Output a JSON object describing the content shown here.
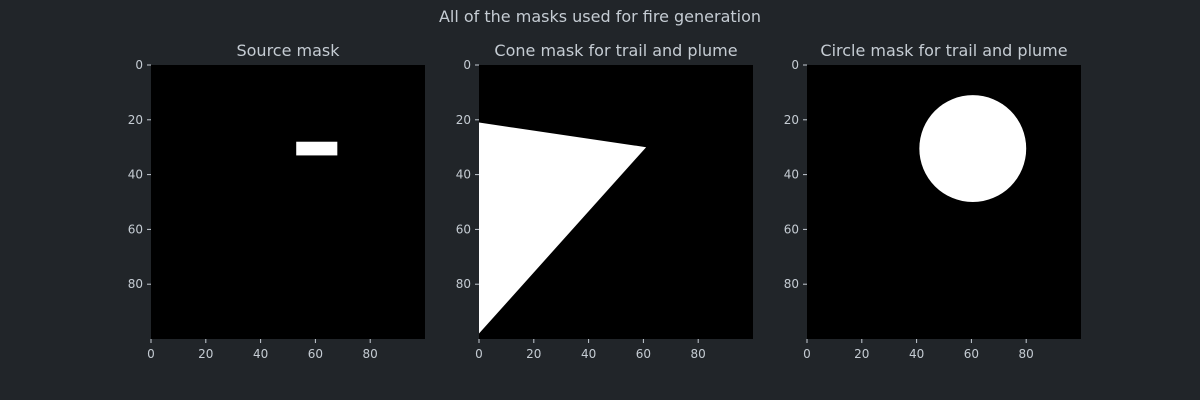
{
  "figure": {
    "suptitle": "All of the masks used for fire generation",
    "background": "#212529",
    "text_color": "#c5ccd3",
    "mask_on_color": "#ffffff",
    "mask_off_color": "#000000"
  },
  "chart_data": [
    {
      "type": "heatmap",
      "title": "Source mask",
      "xlabel": "",
      "ylabel": "",
      "xlim": [
        0,
        100
      ],
      "ylim": [
        100,
        0
      ],
      "xticks": [
        "0",
        "20",
        "40",
        "60",
        "80"
      ],
      "yticks": [
        "0",
        "20",
        "40",
        "60",
        "80"
      ],
      "grid": false,
      "mask": {
        "shape": "rectangle",
        "x0": 53,
        "x1": 68,
        "y0": 28,
        "y1": 33
      }
    },
    {
      "type": "heatmap",
      "title": "Cone mask for trail and plume",
      "xlabel": "",
      "ylabel": "",
      "xlim": [
        0,
        100
      ],
      "ylim": [
        100,
        0
      ],
      "xticks": [
        "0",
        "20",
        "40",
        "60",
        "80"
      ],
      "yticks": [
        "0",
        "20",
        "40",
        "60",
        "80"
      ],
      "grid": false,
      "mask": {
        "shape": "polygon",
        "vertices": [
          [
            0,
            21
          ],
          [
            61,
            30
          ],
          [
            0,
            98
          ]
        ]
      }
    },
    {
      "type": "heatmap",
      "title": "Circle mask for trail and plume",
      "xlabel": "",
      "ylabel": "",
      "xlim": [
        0,
        100
      ],
      "ylim": [
        100,
        0
      ],
      "xticks": [
        "0",
        "20",
        "40",
        "60",
        "80"
      ],
      "yticks": [
        "0",
        "20",
        "40",
        "60",
        "80"
      ],
      "grid": false,
      "mask": {
        "shape": "circle",
        "cx": 60.5,
        "cy": 30.5,
        "r": 19.5
      }
    }
  ]
}
